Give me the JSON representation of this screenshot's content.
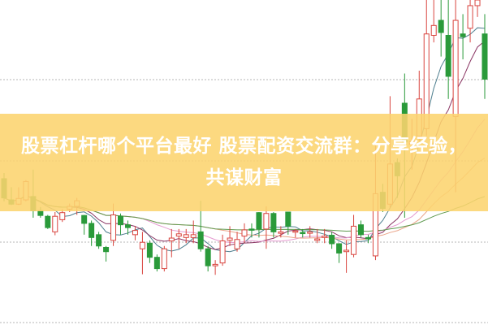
{
  "banner": {
    "text": "股票杠杆哪个平台最好 股票配资交流群：分享经验，共谋财富"
  },
  "chart_data": {
    "type": "candlestick",
    "grid": true,
    "colors": {
      "up": "#d9453f",
      "down": "#2a9a3a",
      "grid": "#b5b5b5",
      "ma": [
        "#4f7f8f",
        "#8a3563",
        "#e59ad0",
        "#eba58a",
        "#5f9a4f"
      ]
    },
    "moving_average_periods": [
      5,
      10,
      20,
      30,
      60
    ],
    "candles": [
      [
        36.8,
        38.8,
        28.8,
        30
      ],
      [
        29.3,
        33.8,
        27.5,
        27.8
      ],
      [
        27.8,
        33.8,
        27.5,
        29.8
      ],
      [
        29.3,
        36.3,
        28.8,
        35.8
      ],
      [
        30.5,
        40,
        23,
        25.5
      ],
      [
        25.5,
        26.8,
        23,
        23.8
      ],
      [
        23.5,
        24,
        19,
        19.5
      ],
      [
        18,
        25,
        16.8,
        23.5
      ],
      [
        22.3,
        26,
        21.5,
        24.8
      ],
      [
        26,
        28,
        25,
        27
      ],
      [
        27,
        30,
        24,
        29
      ],
      [
        23.8,
        24,
        17,
        21
      ],
      [
        21,
        22,
        13,
        16
      ],
      [
        17,
        18,
        12,
        13
      ],
      [
        12.5,
        13,
        7.5,
        11
      ],
      [
        15,
        28,
        13,
        24
      ],
      [
        23.5,
        24.5,
        17,
        20.5
      ],
      [
        20.5,
        22,
        17,
        19.5
      ],
      [
        17,
        20,
        15,
        18.5
      ],
      [
        12,
        18,
        3,
        14.3
      ],
      [
        14,
        15,
        7,
        9
      ],
      [
        9,
        10,
        4,
        5
      ],
      [
        5,
        13,
        4,
        12
      ],
      [
        14.8,
        19,
        9,
        15.8
      ],
      [
        16.5,
        19,
        12,
        17.3
      ],
      [
        16,
        19,
        14,
        17
      ],
      [
        16,
        22,
        14,
        17
      ],
      [
        18,
        29,
        11,
        12
      ],
      [
        12,
        13,
        4,
        6
      ],
      [
        6,
        8,
        2.8,
        6.5
      ],
      [
        7,
        17,
        6,
        14.8
      ],
      [
        15,
        20,
        13,
        15.8
      ],
      [
        12,
        18,
        11,
        15.3
      ],
      [
        16.5,
        21,
        14,
        18.7
      ],
      [
        19,
        21,
        16,
        18.7
      ],
      [
        24.8,
        25,
        16,
        19
      ],
      [
        19,
        27,
        12,
        24.5
      ],
      [
        24.5,
        25,
        16,
        18
      ],
      [
        17.5,
        20,
        16,
        18
      ],
      [
        25,
        25,
        17,
        20
      ],
      [
        18,
        19,
        16,
        18.3
      ],
      [
        17.8,
        19,
        16,
        17.5
      ],
      [
        17.5,
        20,
        16,
        18
      ],
      [
        15,
        19,
        14,
        15.5
      ],
      [
        16,
        19,
        14,
        16.5
      ],
      [
        16.8,
        18,
        12,
        13.8
      ],
      [
        13.8,
        14,
        7,
        10.5
      ],
      [
        11,
        15,
        3.5,
        11.5
      ],
      [
        10,
        24,
        9,
        20
      ],
      [
        20.5,
        22,
        16,
        17
      ],
      [
        16,
        17,
        14,
        15.5
      ],
      [
        9.5,
        49,
        8,
        31.5
      ],
      [
        32,
        35,
        25,
        26.3
      ],
      [
        27.8,
        66,
        26.5,
        42
      ],
      [
        42.5,
        44,
        30,
        37.8
      ],
      [
        63.5,
        74,
        23,
        49.8
      ],
      [
        49,
        58,
        40,
        50
      ],
      [
        51.8,
        75,
        50,
        65
      ],
      [
        54.5,
        100,
        52,
        88
      ],
      [
        87.5,
        100,
        85,
        91
      ],
      [
        92.8,
        100,
        80,
        88.5
      ],
      [
        87.5,
        100,
        65,
        73
      ],
      [
        58.8,
        100,
        32,
        92.8
      ],
      [
        88,
        95,
        79,
        87
      ],
      [
        90,
        100,
        85,
        98
      ],
      [
        98,
        100,
        94,
        100
      ],
      [
        88,
        95,
        65,
        72
      ]
    ]
  }
}
